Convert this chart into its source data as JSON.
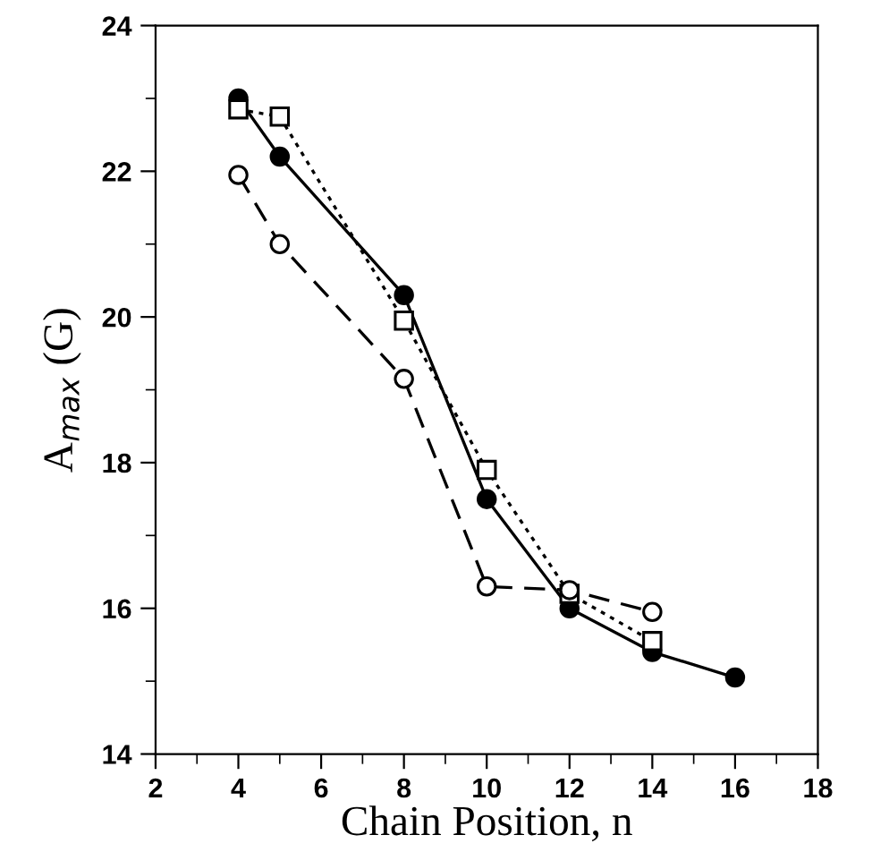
{
  "chart_data": {
    "type": "line",
    "xlabel": "Chain Position, n",
    "ylabel": "A$_{max}$ (G)",
    "xlim": [
      2,
      18
    ],
    "xticks": [
      2,
      4,
      6,
      8,
      10,
      12,
      14,
      16,
      18
    ],
    "ylim": [
      14,
      24
    ],
    "yticks": [
      14,
      16,
      18,
      20,
      22,
      24
    ],
    "grid": false,
    "series": [
      {
        "color": "#000000",
        "marker": "circle",
        "line_style": "solid",
        "x": [
          4,
          5,
          8,
          10,
          12,
          14,
          16
        ],
        "values": [
          23.0,
          22.2,
          20.3,
          17.5,
          16.0,
          15.4,
          15.05
        ]
      },
      {
        "color": "#000000",
        "marker": "square",
        "line_style": "dotted",
        "x": [
          4,
          5,
          8,
          10,
          12,
          14
        ],
        "values": [
          22.85,
          22.75,
          19.95,
          17.9,
          16.2,
          15.55
        ]
      },
      {
        "color": "#000000",
        "marker": "circle",
        "line_style": "dashed",
        "x": [
          4,
          5,
          8,
          10,
          12,
          14
        ],
        "values": [
          21.95,
          21.0,
          19.15,
          16.3,
          16.25,
          15.95
        ]
      }
    ]
  }
}
